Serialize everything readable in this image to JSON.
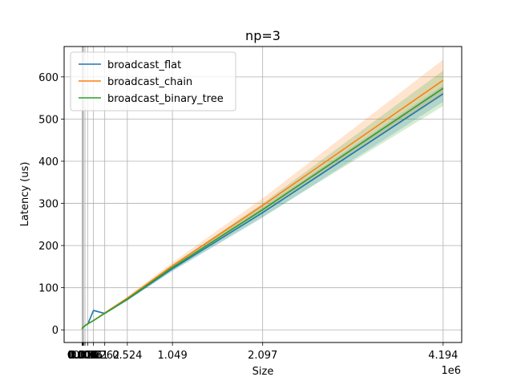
{
  "chart_data": {
    "type": "line",
    "title": "np=3",
    "xlabel": "Size",
    "ylabel": "Latency (us)",
    "x_scale_note": "1e6",
    "xlim": [
      -0.21,
      4.41
    ],
    "ylim": [
      -30,
      672
    ],
    "grid": true,
    "legend_position": "upper-left",
    "x": [
      4e-06,
      8e-06,
      1.6e-05,
      3.2e-05,
      6.4e-05,
      0.000128,
      0.000256,
      0.000512,
      0.001024,
      0.002048,
      0.004096,
      0.008192,
      0.016384,
      0.032768,
      0.065536,
      0.131072,
      0.262144,
      0.524288,
      1.048576,
      2.097152,
      4.194304
    ],
    "x_ticks": [
      {
        "value": 4e-06,
        "label": "0.000"
      },
      {
        "value": 8e-06,
        "label": "0.000"
      },
      {
        "value": 1.6e-05,
        "label": "0.000"
      },
      {
        "value": 3.2e-05,
        "label": "0.000"
      },
      {
        "value": 6.4e-05,
        "label": "0.000"
      },
      {
        "value": 0.000128,
        "label": "0.000"
      },
      {
        "value": 0.000256,
        "label": "0.000"
      },
      {
        "value": 0.000512,
        "label": "0.001"
      },
      {
        "value": 0.001024,
        "label": "0.001"
      },
      {
        "value": 0.002048,
        "label": "0.002"
      },
      {
        "value": 0.004096,
        "label": "0.004"
      },
      {
        "value": 0.008192,
        "label": "0.008"
      },
      {
        "value": 0.016384,
        "label": "0.016"
      },
      {
        "value": 0.032768,
        "label": "0.033"
      },
      {
        "value": 0.065536,
        "label": "0.066"
      },
      {
        "value": 0.131072,
        "label": "0.131"
      },
      {
        "value": 0.262144,
        "label": "0.262"
      },
      {
        "value": 0.524288,
        "label": "0.524"
      },
      {
        "value": 1.048576,
        "label": "1.049"
      },
      {
        "value": 2.097152,
        "label": "2.097"
      },
      {
        "value": 4.194304,
        "label": "4.194"
      }
    ],
    "y_ticks": [
      0,
      100,
      200,
      300,
      400,
      500,
      600
    ],
    "series": [
      {
        "name": "broadcast_flat",
        "color": "#1f77b4",
        "values": [
          2,
          2,
          2,
          2,
          2,
          2,
          2,
          3,
          3,
          4,
          5,
          6,
          7,
          10,
          14,
          46,
          39,
          72,
          145,
          278,
          560
        ],
        "band_lower": [
          2,
          2,
          2,
          2,
          2,
          2,
          2,
          3,
          3,
          4,
          5,
          6,
          7,
          10,
          14,
          44,
          37,
          69,
          139,
          266,
          541
        ],
        "band_upper": [
          2,
          2,
          2,
          2,
          2,
          2,
          2,
          3,
          3,
          4,
          5,
          6,
          7,
          10,
          14,
          48,
          41,
          75,
          151,
          290,
          579
        ]
      },
      {
        "name": "broadcast_chain",
        "color": "#ff7f0e",
        "values": [
          2,
          2,
          2,
          2,
          2,
          2,
          2,
          3,
          3,
          4,
          5,
          6,
          7,
          10,
          15,
          22,
          40,
          75,
          152,
          295,
          592
        ],
        "band_lower": [
          2,
          2,
          2,
          2,
          2,
          2,
          2,
          3,
          3,
          4,
          5,
          6,
          7,
          10,
          14,
          21,
          38,
          72,
          145,
          278,
          556
        ],
        "band_upper": [
          2,
          2,
          2,
          2,
          2,
          2,
          2,
          3,
          3,
          4,
          5,
          6,
          7,
          10,
          16,
          23,
          42,
          79,
          160,
          312,
          641
        ]
      },
      {
        "name": "broadcast_binary_tree",
        "color": "#2ca02c",
        "values": [
          2,
          2,
          2,
          2,
          2,
          2,
          2,
          3,
          3,
          4,
          5,
          6,
          7,
          10,
          14,
          22,
          39,
          73,
          148,
          285,
          573
        ],
        "band_lower": [
          2,
          2,
          2,
          2,
          2,
          2,
          2,
          3,
          3,
          4,
          5,
          6,
          7,
          10,
          13,
          21,
          37,
          70,
          140,
          268,
          531
        ],
        "band_upper": [
          2,
          2,
          2,
          2,
          2,
          2,
          2,
          3,
          3,
          4,
          5,
          6,
          7,
          10,
          15,
          23,
          41,
          76,
          154,
          300,
          615
        ]
      }
    ]
  }
}
